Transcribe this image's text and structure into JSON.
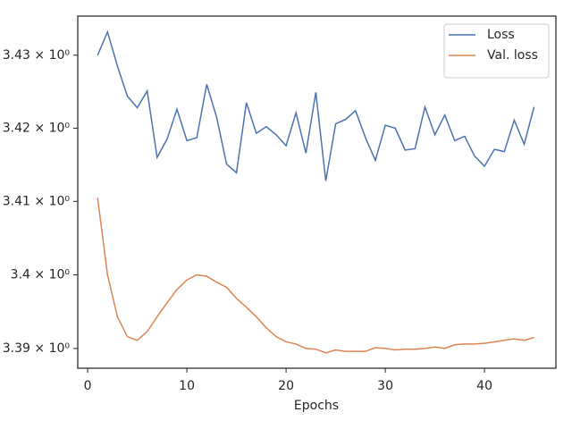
{
  "chart_data": {
    "type": "line",
    "xlabel": "Epochs",
    "log_y": true,
    "legend": "upper right",
    "x": [
      1,
      2,
      3,
      4,
      5,
      6,
      7,
      8,
      9,
      10,
      11,
      12,
      13,
      14,
      15,
      16,
      17,
      18,
      19,
      20,
      21,
      22,
      23,
      24,
      25,
      26,
      27,
      28,
      29,
      30,
      31,
      32,
      33,
      34,
      35,
      36,
      37,
      38,
      39,
      40,
      41,
      42,
      43,
      44,
      45
    ],
    "series": [
      {
        "name": "Loss",
        "color": "#4c72b0",
        "values": [
          3.43,
          3.4332,
          3.4285,
          3.4244,
          3.4228,
          3.4251,
          3.416,
          3.4185,
          3.4226,
          3.4183,
          3.4187,
          3.426,
          3.4215,
          3.4151,
          3.4139,
          3.4235,
          3.4193,
          3.4202,
          3.4191,
          3.4176,
          3.4221,
          3.4166,
          3.4249,
          3.4128,
          3.4206,
          3.4212,
          3.4224,
          3.4187,
          3.4156,
          3.4204,
          3.42,
          3.417,
          3.4172,
          3.4229,
          3.4191,
          3.4218,
          3.4183,
          3.4189,
          3.4162,
          3.4148,
          3.4171,
          3.4168,
          3.4211,
          3.4178,
          3.4229
        ]
      },
      {
        "name": "Val. loss",
        "color": "#dd8452",
        "values": [
          3.4105,
          3.4,
          3.3943,
          3.3916,
          3.3911,
          3.3923,
          3.3943,
          3.3962,
          3.398,
          3.3993,
          3.4,
          3.3998,
          3.399,
          3.3983,
          3.3968,
          3.3956,
          3.3943,
          3.3928,
          3.3916,
          3.3909,
          3.3906,
          3.39,
          3.3899,
          3.3894,
          3.3898,
          3.3896,
          3.3896,
          3.3896,
          3.3901,
          3.39,
          3.3898,
          3.3899,
          3.3899,
          3.39,
          3.3902,
          3.39,
          3.3905,
          3.3906,
          3.3906,
          3.3907,
          3.3909,
          3.3911,
          3.3913,
          3.3911,
          3.3915
        ]
      }
    ],
    "xlim": [
      -1,
      47.2
    ],
    "xticks": [
      0,
      10,
      20,
      30,
      40
    ],
    "ylim": [
      3.38732,
      3.43537
    ],
    "yticks": [
      {
        "value": 3.39,
        "label": "3.39 × 10⁰"
      },
      {
        "value": 3.4,
        "label": "3.4 × 10⁰"
      },
      {
        "value": 3.41,
        "label": "3.41 × 10⁰"
      },
      {
        "value": 3.42,
        "label": "3.42 × 10⁰"
      },
      {
        "value": 3.43,
        "label": "3.43 × 10⁰"
      }
    ]
  }
}
